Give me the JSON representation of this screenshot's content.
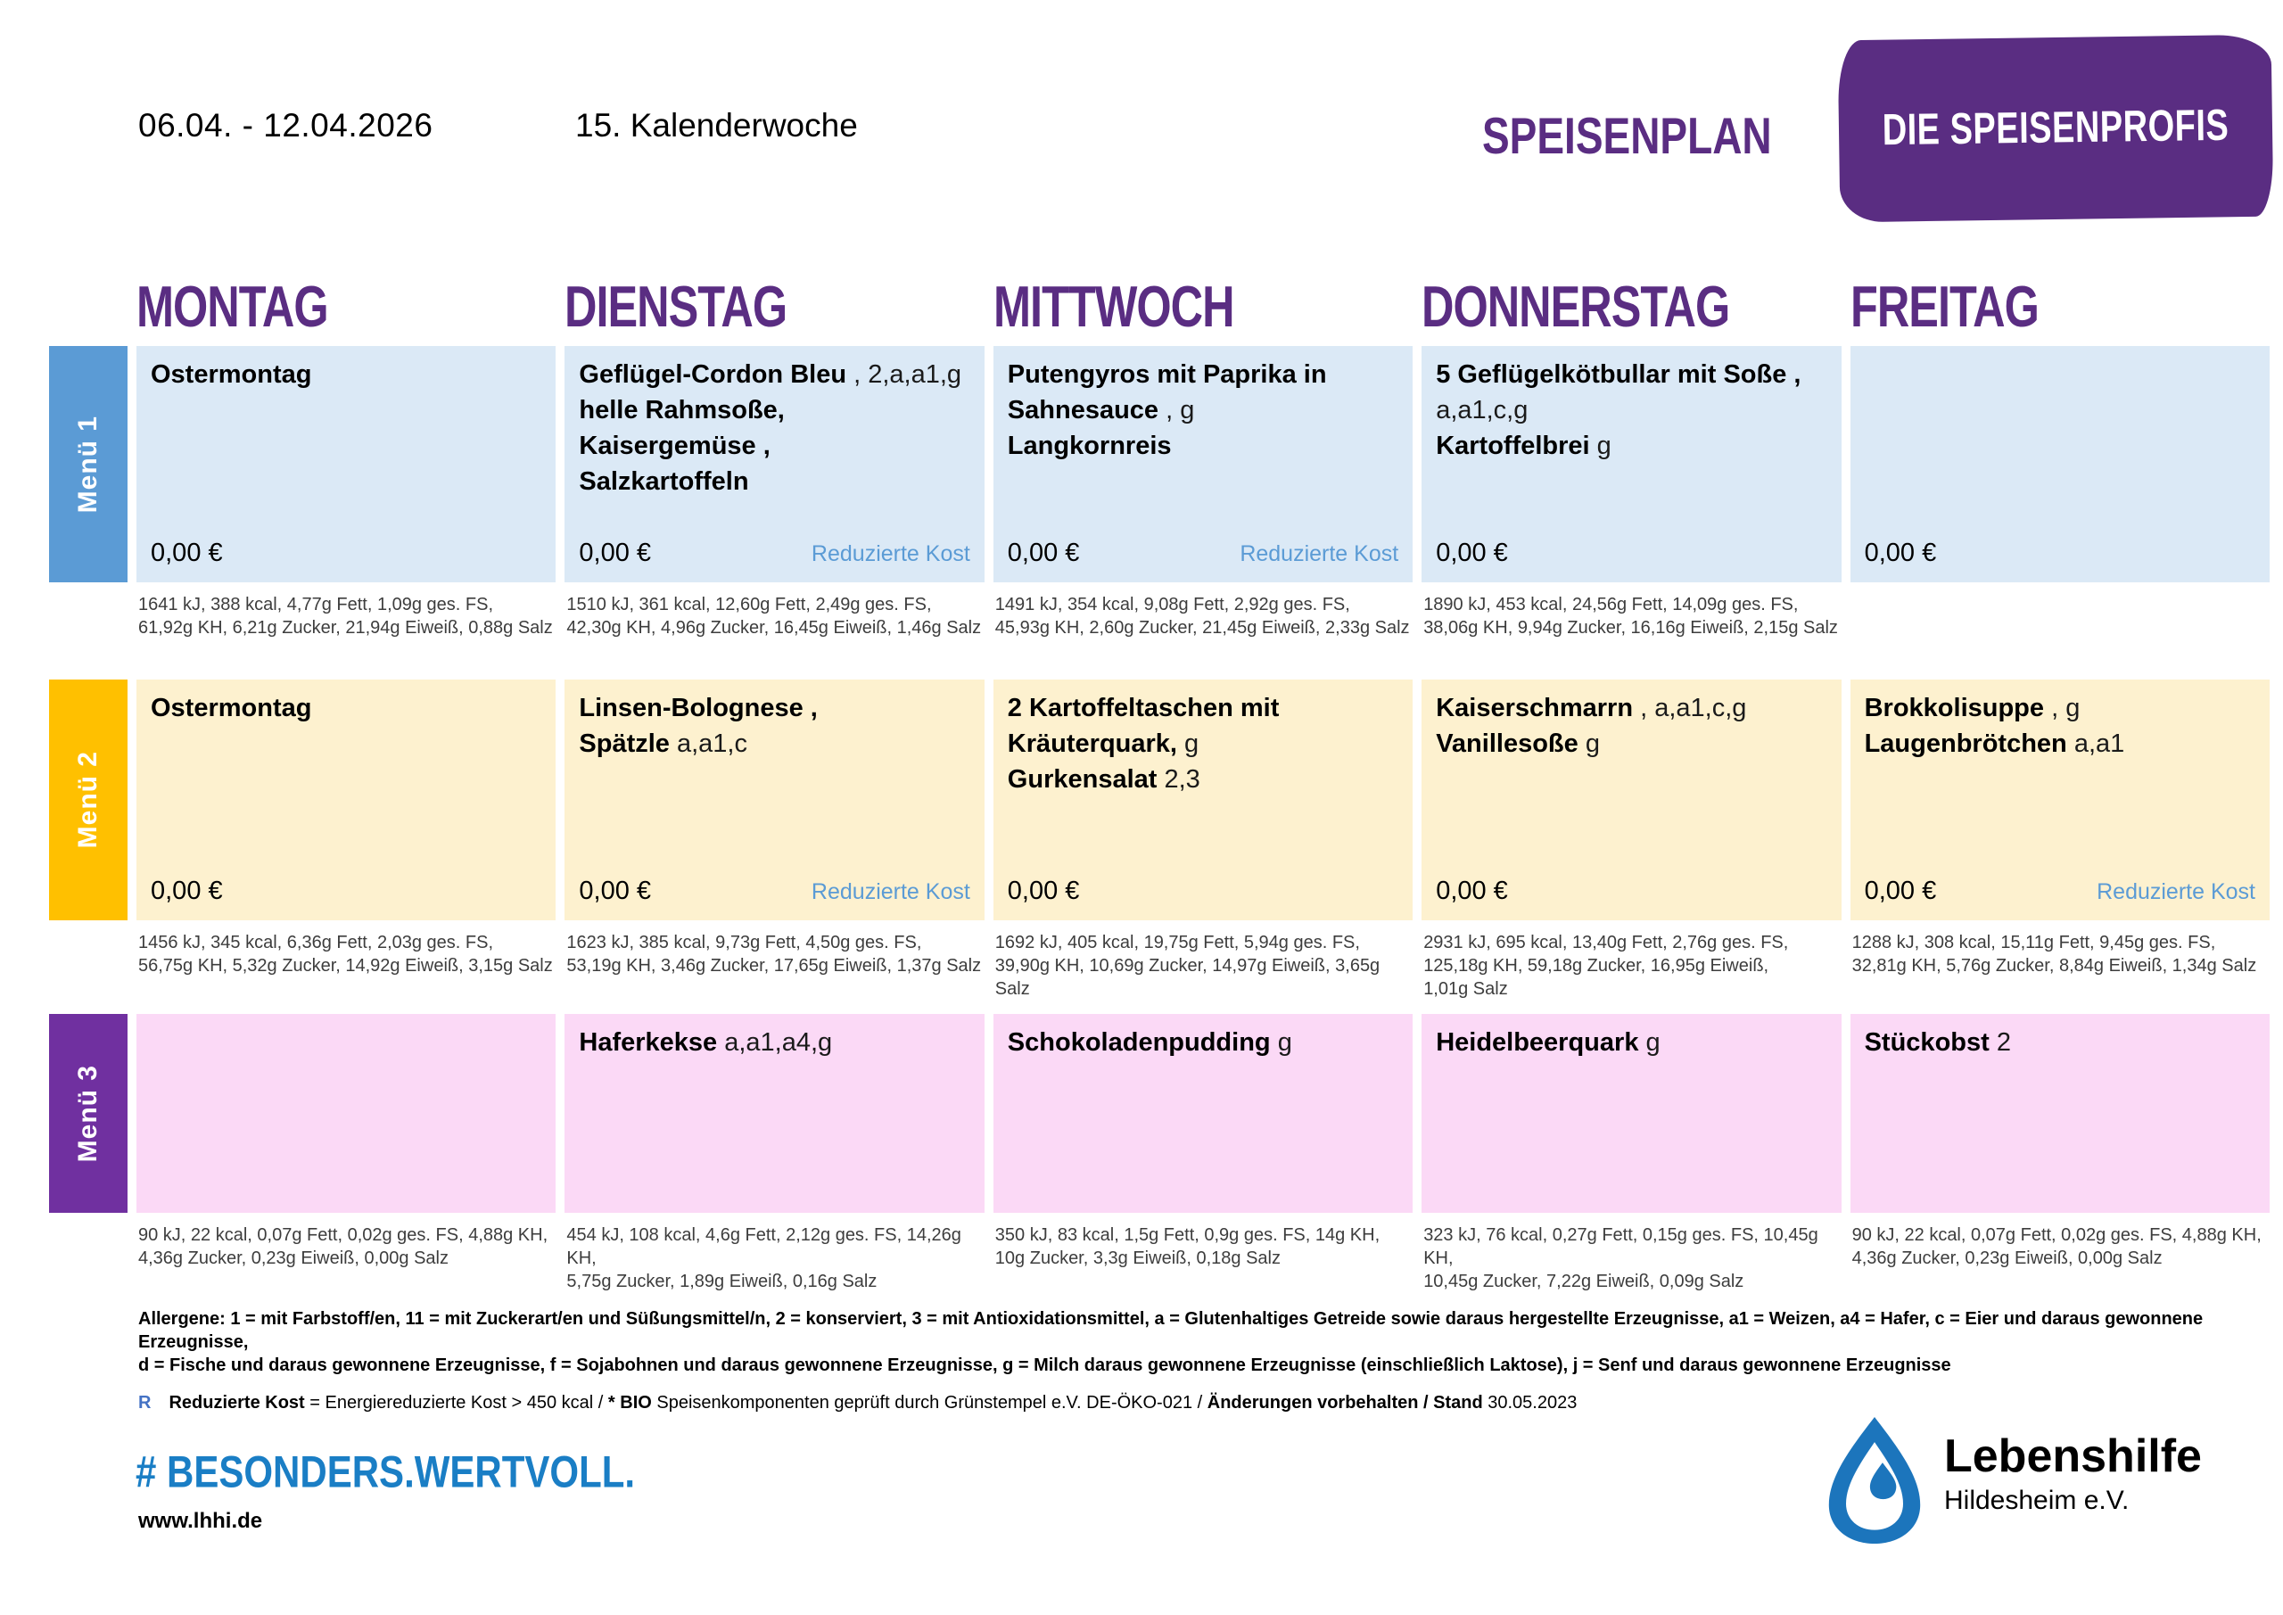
{
  "header": {
    "date_range": "06.04. - 12.04.2026",
    "week": "15. Kalenderwoche",
    "plan_title": "SPEISENPLAN",
    "brand": "DIE SPEISENPROFIS"
  },
  "colors": {
    "heading_purple": "#5a2d82",
    "link_blue": "#5b9bd5",
    "hashtag_blue": "#1a7ec5",
    "logo_blue": "#1c75bc"
  },
  "table": {
    "reduced_label": "Reduzierte Kost",
    "days": [
      "MONTAG",
      "DIENSTAG",
      "MITTWOCH",
      "DONNERSTAG",
      "FREITAG"
    ],
    "menus": [
      {
        "label": "Menü 1",
        "bar_color": "#5b9bd5",
        "cell_color": "#dbe9f6",
        "has_price_row": true,
        "cells": [
          {
            "meal": [
              [
                {
                  "t": "Ostermontag",
                  "b": true
                }
              ]
            ],
            "price": "0,00 €",
            "reduced": false,
            "nutrition": [
              "1641 kJ, 388 kcal, 4,77g Fett, 1,09g ges. FS,",
              "61,92g KH, 6,21g Zucker, 21,94g Eiweiß, 0,88g Salz"
            ]
          },
          {
            "meal": [
              [
                {
                  "t": "Geflügel-Cordon Bleu",
                  "b": true
                },
                {
                  "t": " , 2,a,a1,g",
                  "b": false
                }
              ],
              [
                {
                  "t": "helle Rahmsoße,",
                  "b": true
                }
              ],
              [
                {
                  "t": "Kaisergemüse ,",
                  "b": true
                }
              ],
              [
                {
                  "t": "Salzkartoffeln",
                  "b": true
                }
              ]
            ],
            "price": "0,00 €",
            "reduced": true,
            "nutrition": [
              "1510 kJ, 361 kcal, 12,60g Fett, 2,49g ges. FS,",
              "42,30g KH, 4,96g Zucker, 16,45g Eiweiß, 1,46g Salz"
            ]
          },
          {
            "meal": [
              [
                {
                  "t": "Putengyros mit Paprika in",
                  "b": true
                }
              ],
              [
                {
                  "t": "Sahnesauce",
                  "b": true
                },
                {
                  "t": " , g",
                  "b": false
                }
              ],
              [
                {
                  "t": "Langkornreis",
                  "b": true
                }
              ]
            ],
            "price": "0,00 €",
            "reduced": true,
            "nutrition": [
              "1491 kJ, 354 kcal, 9,08g Fett, 2,92g ges. FS,",
              "45,93g KH, 2,60g Zucker, 21,45g Eiweiß, 2,33g Salz"
            ]
          },
          {
            "meal": [
              [
                {
                  "t": "5 Geflügelkötbullar mit Soße ,",
                  "b": true
                }
              ],
              [
                {
                  "t": "a,a1,c,g",
                  "b": false
                }
              ],
              [
                {
                  "t": "Kartoffelbrei",
                  "b": true
                },
                {
                  "t": " g",
                  "b": false
                }
              ]
            ],
            "price": "0,00 €",
            "reduced": false,
            "nutrition": [
              "1890 kJ, 453 kcal, 24,56g Fett, 14,09g ges. FS,",
              "38,06g KH, 9,94g Zucker, 16,16g Eiweiß, 2,15g Salz"
            ]
          },
          {
            "meal": [],
            "price": "0,00 €",
            "reduced": false,
            "nutrition": []
          }
        ]
      },
      {
        "label": "Menü 2",
        "bar_color": "#ffc000",
        "cell_color": "#fdf1cf",
        "has_price_row": true,
        "cells": [
          {
            "meal": [
              [
                {
                  "t": "Ostermontag",
                  "b": true
                }
              ]
            ],
            "price": "0,00 €",
            "reduced": false,
            "nutrition": [
              "1456 kJ, 345 kcal, 6,36g Fett, 2,03g ges. FS,",
              "56,75g KH, 5,32g Zucker, 14,92g Eiweiß, 3,15g Salz"
            ]
          },
          {
            "meal": [
              [
                {
                  "t": "Linsen-Bolognese ,",
                  "b": true
                }
              ],
              [
                {
                  "t": "Spätzle",
                  "b": true
                },
                {
                  "t": "  a,a1,c",
                  "b": false
                }
              ]
            ],
            "price": "0,00 €",
            "reduced": true,
            "nutrition": [
              "1623 kJ, 385 kcal, 9,73g Fett, 4,50g ges. FS,",
              "53,19g KH, 3,46g Zucker, 17,65g Eiweiß, 1,37g Salz"
            ]
          },
          {
            "meal": [
              [
                {
                  "t": "2 Kartoffeltaschen mit",
                  "b": true
                }
              ],
              [
                {
                  "t": "Kräuterquark,",
                  "b": true
                },
                {
                  "t": " g",
                  "b": false
                }
              ],
              [
                {
                  "t": "Gurkensalat",
                  "b": true
                },
                {
                  "t": " 2,3",
                  "b": false
                }
              ]
            ],
            "price": "0,00 €",
            "reduced": false,
            "nutrition": [
              "1692 kJ, 405 kcal, 19,75g Fett, 5,94g ges. FS,",
              "39,90g KH, 10,69g Zucker, 14,97g Eiweiß, 3,65g Salz"
            ]
          },
          {
            "meal": [
              [
                {
                  "t": "Kaiserschmarrn",
                  "b": true
                },
                {
                  "t": " , a,a1,c,g",
                  "b": false
                }
              ],
              [
                {
                  "t": "Vanillesoße",
                  "b": true
                },
                {
                  "t": " g",
                  "b": false
                }
              ]
            ],
            "price": "0,00 €",
            "reduced": false,
            "nutrition": [
              "2931 kJ, 695 kcal, 13,40g Fett, 2,76g ges. FS,",
              "125,18g KH, 59,18g Zucker, 16,95g Eiweiß,",
              "1,01g Salz"
            ]
          },
          {
            "meal": [
              [
                {
                  "t": "Brokkolisuppe",
                  "b": true
                },
                {
                  "t": " , g",
                  "b": false
                }
              ],
              [
                {
                  "t": "Laugenbrötchen",
                  "b": true
                },
                {
                  "t": " a,a1",
                  "b": false
                }
              ]
            ],
            "price": "0,00 €",
            "reduced": true,
            "nutrition": [
              "1288 kJ, 308 kcal, 15,11g Fett, 9,45g ges. FS,",
              "32,81g KH, 5,76g Zucker, 8,84g Eiweiß, 1,34g Salz"
            ]
          }
        ]
      },
      {
        "label": "Menü 3",
        "bar_color": "#7030a0",
        "cell_color": "#fbd9f6",
        "has_price_row": false,
        "cells": [
          {
            "meal": [],
            "price": "",
            "reduced": false,
            "nutrition": [
              "90 kJ, 22 kcal, 0,07g Fett, 0,02g ges. FS, 4,88g KH,",
              "4,36g Zucker, 0,23g Eiweiß, 0,00g Salz"
            ]
          },
          {
            "meal": [
              [
                {
                  "t": "Haferkekse",
                  "b": true
                },
                {
                  "t": " a,a1,a4,g",
                  "b": false
                }
              ]
            ],
            "price": "",
            "reduced": false,
            "nutrition": [
              "454 kJ, 108 kcal, 4,6g Fett, 2,12g ges. FS, 14,26g KH,",
              "5,75g Zucker, 1,89g Eiweiß, 0,16g Salz"
            ]
          },
          {
            "meal": [
              [
                {
                  "t": "Schokoladenpudding",
                  "b": true
                },
                {
                  "t": " g",
                  "b": false
                }
              ]
            ],
            "price": "",
            "reduced": false,
            "nutrition": [
              "350 kJ, 83 kcal, 1,5g Fett, 0,9g ges. FS, 14g KH,",
              "10g Zucker, 3,3g Eiweiß, 0,18g Salz"
            ]
          },
          {
            "meal": [
              [
                {
                  "t": "Heidelbeerquark",
                  "b": true
                },
                {
                  "t": " g",
                  "b": false
                }
              ]
            ],
            "price": "",
            "reduced": false,
            "nutrition": [
              "323 kJ, 76 kcal, 0,27g Fett, 0,15g ges. FS, 10,45g KH,",
              "10,45g Zucker, 7,22g Eiweiß, 0,09g Salz"
            ]
          },
          {
            "meal": [
              [
                {
                  "t": "Stückobst",
                  "b": true
                },
                {
                  "t": " 2",
                  "b": false
                }
              ]
            ],
            "price": "",
            "reduced": false,
            "nutrition": [
              "90 kJ, 22 kcal, 0,07g Fett, 0,02g ges. FS, 4,88g KH,",
              "4,36g Zucker, 0,23g Eiweiß, 0,00g Salz"
            ]
          }
        ]
      }
    ]
  },
  "footer": {
    "allergens_line1": "Allergene: 1 = mit Farbstoff/en, 11 = mit Zuckerart/en und Süßungsmittel/n, 2 = konserviert, 3 = mit Antioxidationsmittel, a = Glutenhaltiges Getreide sowie daraus hergestellte Erzeugnisse, a1 = Weizen, a4 = Hafer, c = Eier und daraus gewonnene Erzeugnisse,",
    "allergens_line2": "d = Fische und daraus gewonnene Erzeugnisse, f = Sojabohnen und daraus gewonnene Erzeugnisse, g = Milch daraus gewonnene Erzeugnisse (einschließlich Laktose), j = Senf und daraus gewonnene Erzeugnisse",
    "r_mark": "R",
    "r_segments": [
      {
        "t": "Reduzierte Kost",
        "b": true
      },
      {
        "t": " = Energiereduzierte Kost > 450 kcal / ",
        "b": false
      },
      {
        "t": "* BIO",
        "b": true
      },
      {
        "t": " Speisenkomponenten geprüft durch Grünstempel e.V. DE-ÖKO-021 / ",
        "b": false
      },
      {
        "t": "Änderungen vorbehalten / Stand",
        "b": true
      },
      {
        "t": " 30.05.2023",
        "b": false
      }
    ],
    "hashtag": "# BESONDERS.WERTVOLL.",
    "website": "www.lhhi.de",
    "org_name": "Lebenshilfe",
    "org_sub": "Hildesheim e.V."
  }
}
